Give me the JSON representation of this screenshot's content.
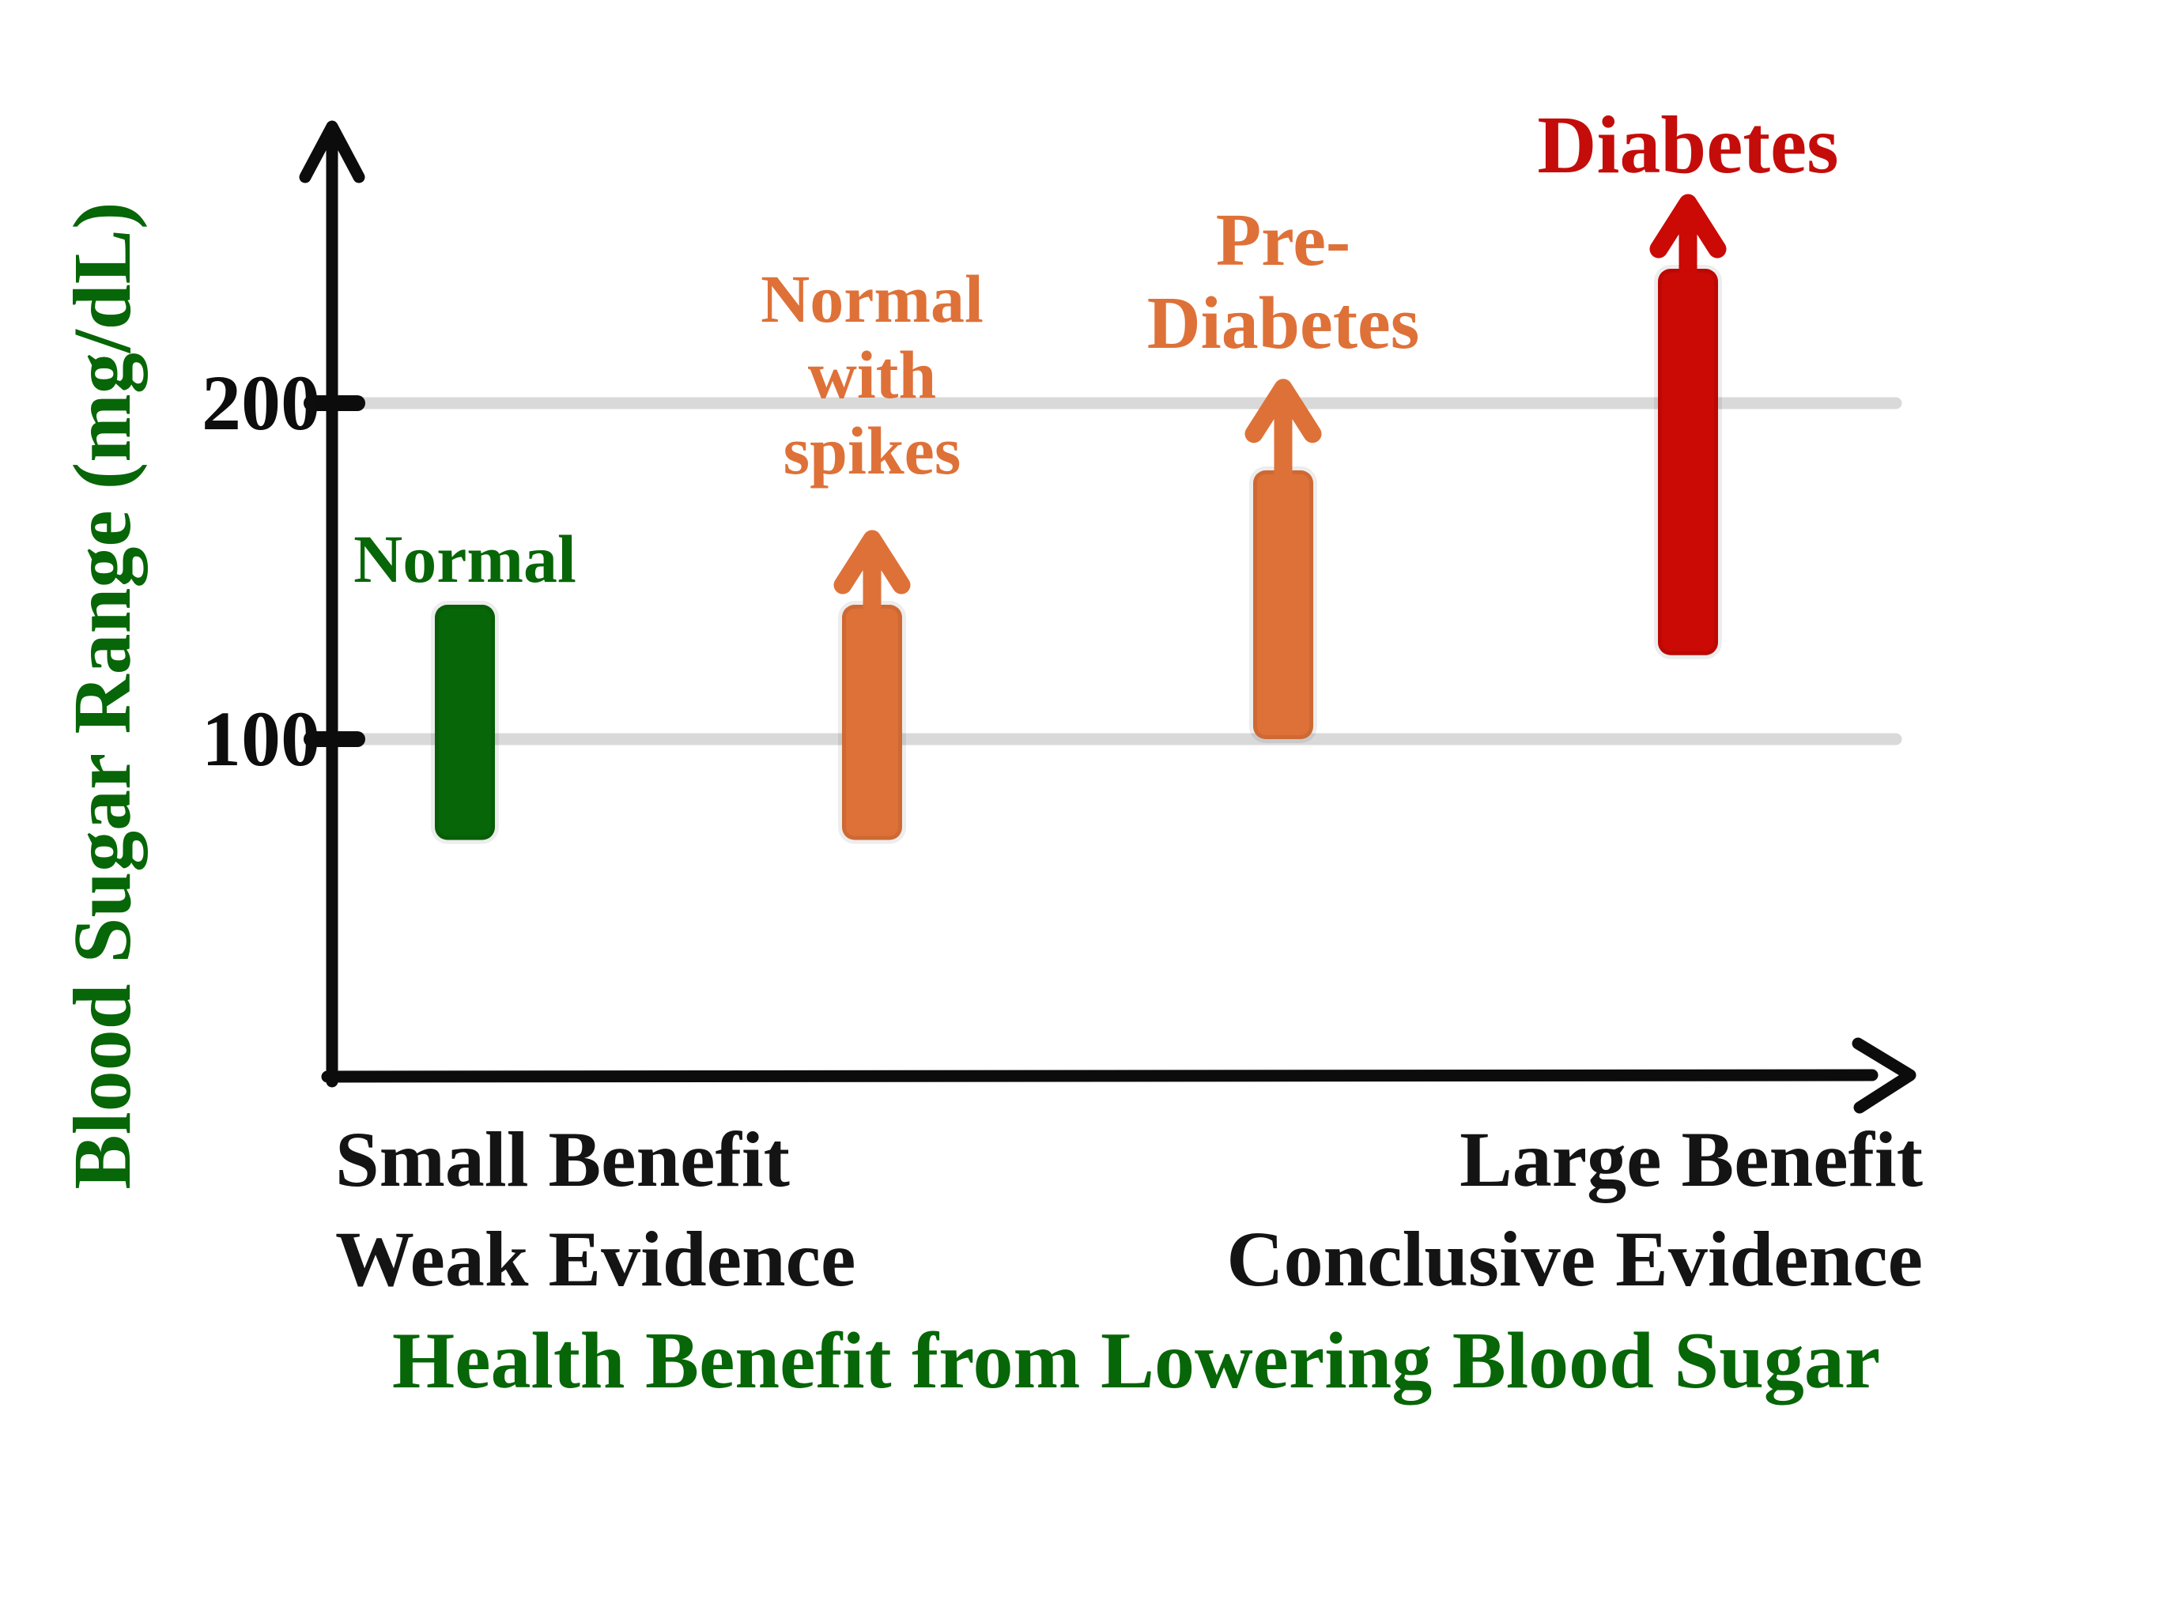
{
  "page": {
    "background": "#ffffff"
  },
  "chart_data": {
    "type": "bar",
    "subtype": "floating-range-bars-hand-drawn",
    "title": "",
    "ylabel": "Blood Sugar Range (mg/dL)",
    "xlabel": "Health Benefit from Lowering Blood Sugar",
    "ylim": [
      0,
      285
    ],
    "y_ticks": [
      100,
      200
    ],
    "gridlines_y": [
      100,
      200
    ],
    "grid": true,
    "legend": false,
    "x_axis_end_labels": {
      "left_line1": "Small Benefit",
      "left_line2": "Weak Evidence",
      "right_line1": "Large Benefit",
      "right_line2": "Conclusive Evidence"
    },
    "categories": [
      "Normal",
      "Normal with spikes",
      "Pre-Diabetes",
      "Diabetes"
    ],
    "bars": [
      {
        "name": "Normal",
        "label_lines": [
          "Normal"
        ],
        "range_mg_dl": [
          70,
          140
        ],
        "open_ended_above": false,
        "arrow_tip_value": null,
        "bar_color": "#076607",
        "label_color": "#076607"
      },
      {
        "name": "Normal with spikes",
        "label_lines": [
          "Normal",
          "with",
          "spikes"
        ],
        "range_mg_dl": [
          70,
          140
        ],
        "open_ended_above": true,
        "arrow_tip_value": 160,
        "bar_color": "#de7138",
        "label_color": "#de7138"
      },
      {
        "name": "Pre-Diabetes",
        "label_lines": [
          "Pre-",
          "Diabetes"
        ],
        "range_mg_dl": [
          100,
          180
        ],
        "open_ended_above": true,
        "arrow_tip_value": 205,
        "bar_color": "#de7138",
        "label_color": "#de7138"
      },
      {
        "name": "Diabetes",
        "label_lines": [
          "Diabetes"
        ],
        "range_mg_dl": [
          125,
          240
        ],
        "open_ended_above": true,
        "arrow_tip_value": 260,
        "bar_color": "#cb0905",
        "label_color": "#c40d0a"
      }
    ],
    "colors": {
      "axis": "#0c0c0c",
      "gridline": "#d9d9d9",
      "tick_label": "#0d0d0d",
      "end_label_text": "#141414",
      "green_titles": "#076607"
    }
  }
}
